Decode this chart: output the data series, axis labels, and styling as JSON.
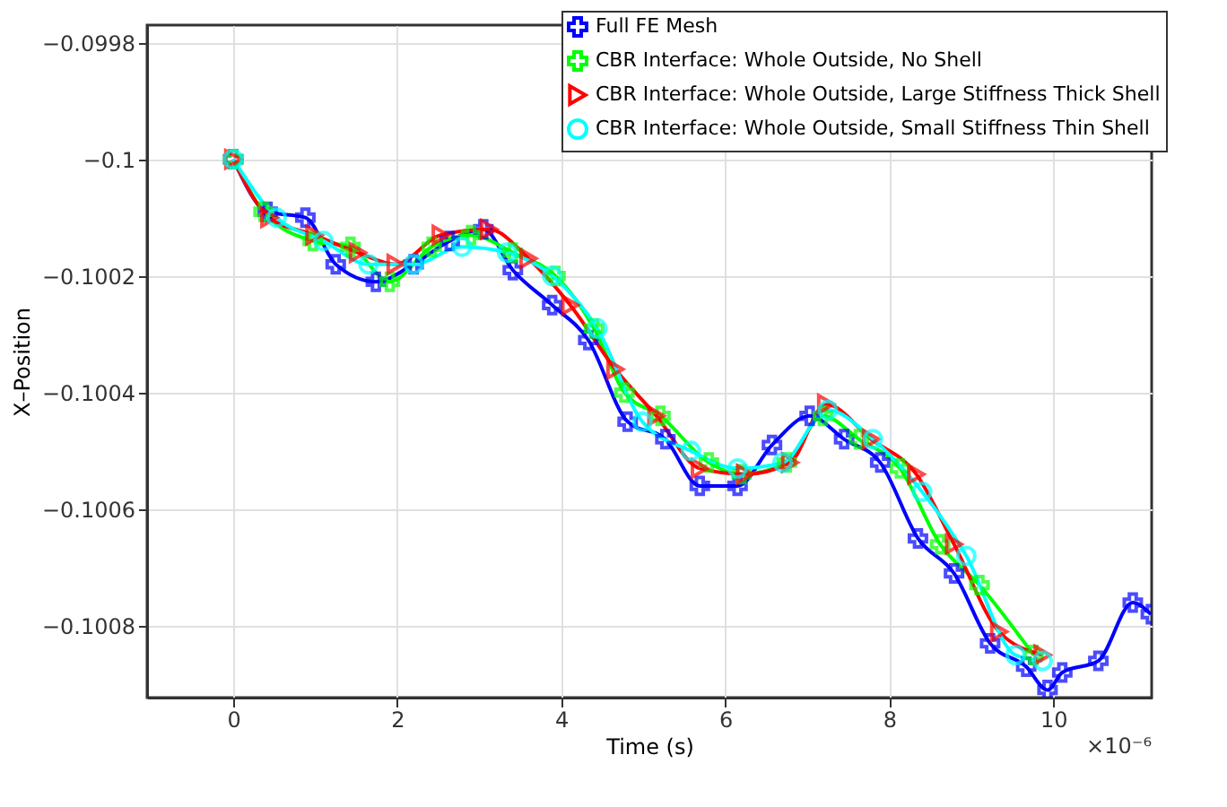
{
  "chart_data": {
    "type": "line",
    "xlabel": "Time (s)",
    "ylabel": "X–Position",
    "xlim": [
      -1.05,
      11.2
    ],
    "xticks": [
      0,
      2,
      4,
      6,
      8,
      10
    ],
    "ylim": [
      -0.100923,
      -0.09977
    ],
    "yticks": [
      -0.0998,
      -0.1,
      -0.1002,
      -0.1004,
      -0.1006,
      -0.1008
    ],
    "grid": true,
    "legend": "top right",
    "line_style": "solid",
    "annotations": [
      "×10⁻⁶"
    ],
    "series": [
      {
        "name": "Full FE Mesh",
        "color": "#0000ff",
        "marker": "cross",
        "x": [
          0,
          0.42,
          0.88,
          1.25,
          1.74,
          2.2,
          2.64,
          3.05,
          3.41,
          3.89,
          4.33,
          4.81,
          5.27,
          5.69,
          6.15,
          6.57,
          7.03,
          7.45,
          7.89,
          8.35,
          8.79,
          9.23,
          9.67,
          9.93,
          10.11,
          10.55,
          10.97,
          11.19
        ],
        "values": [
          -0.1,
          -0.10009,
          -0.1001,
          -0.10018,
          -0.10021,
          -0.10018,
          -0.10014,
          -0.10012,
          -0.10019,
          -0.10025,
          -0.10031,
          -0.10045,
          -0.10048,
          -0.10056,
          -0.10056,
          -0.10049,
          -0.10044,
          -0.10048,
          -0.10052,
          -0.10065,
          -0.10071,
          -0.10083,
          -0.10087,
          -0.10091,
          -0.10088,
          -0.10086,
          -0.10076,
          -0.10078
        ]
      },
      {
        "name": "CBR Interface: Whole Outside, No Shell",
        "color": "#00ff00",
        "marker": "cross",
        "x": [
          0,
          0.37,
          0.97,
          1.43,
          1.91,
          2.42,
          2.9,
          3.41,
          3.93,
          4.4,
          4.77,
          5.21,
          5.8,
          6.2,
          6.75,
          7.19,
          7.63,
          8.13,
          8.62,
          9.1,
          9.76
        ],
        "values": [
          -0.1,
          -0.10009,
          -0.10014,
          -0.10015,
          -0.10021,
          -0.10015,
          -0.10013,
          -0.10016,
          -0.1002,
          -0.10029,
          -0.1004,
          -0.10044,
          -0.10052,
          -0.10054,
          -0.10052,
          -0.10044,
          -0.10048,
          -0.10053,
          -0.10066,
          -0.10073,
          -0.10085
        ]
      },
      {
        "name": "CBR Interface: Whole Outside, Large Stiffness Thick Shell",
        "color": "#ff0000",
        "marker": "triangle",
        "x": [
          0,
          0.44,
          0.99,
          1.52,
          1.98,
          2.53,
          3.12,
          3.6,
          4.11,
          4.66,
          5.16,
          5.69,
          6.24,
          6.79,
          7.23,
          7.78,
          8.33,
          8.79,
          9.34,
          9.87
        ],
        "values": [
          -0.1,
          -0.1001,
          -0.10013,
          -0.10016,
          -0.10018,
          -0.10013,
          -0.10012,
          -0.10017,
          -0.10025,
          -0.10036,
          -0.10044,
          -0.10053,
          -0.10054,
          -0.10052,
          -0.10042,
          -0.10048,
          -0.10054,
          -0.10066,
          -0.10081,
          -0.10085
        ]
      },
      {
        "name": "CBR Interface: Whole Outside, Small Stiffness Thin Shell",
        "color": "#00ffff",
        "marker": "circle",
        "x": [
          0,
          0.53,
          1.1,
          1.65,
          2.2,
          2.79,
          3.34,
          3.89,
          4.44,
          4.99,
          5.58,
          6.15,
          6.7,
          7.25,
          7.8,
          8.4,
          8.94,
          9.54,
          9.87
        ],
        "values": [
          -0.1,
          -0.1001,
          -0.10014,
          -0.10018,
          -0.10018,
          -0.10015,
          -0.10016,
          -0.1002,
          -0.10029,
          -0.10045,
          -0.1005,
          -0.10053,
          -0.10052,
          -0.10043,
          -0.10048,
          -0.10057,
          -0.10068,
          -0.10085,
          -0.10086
        ]
      }
    ]
  }
}
